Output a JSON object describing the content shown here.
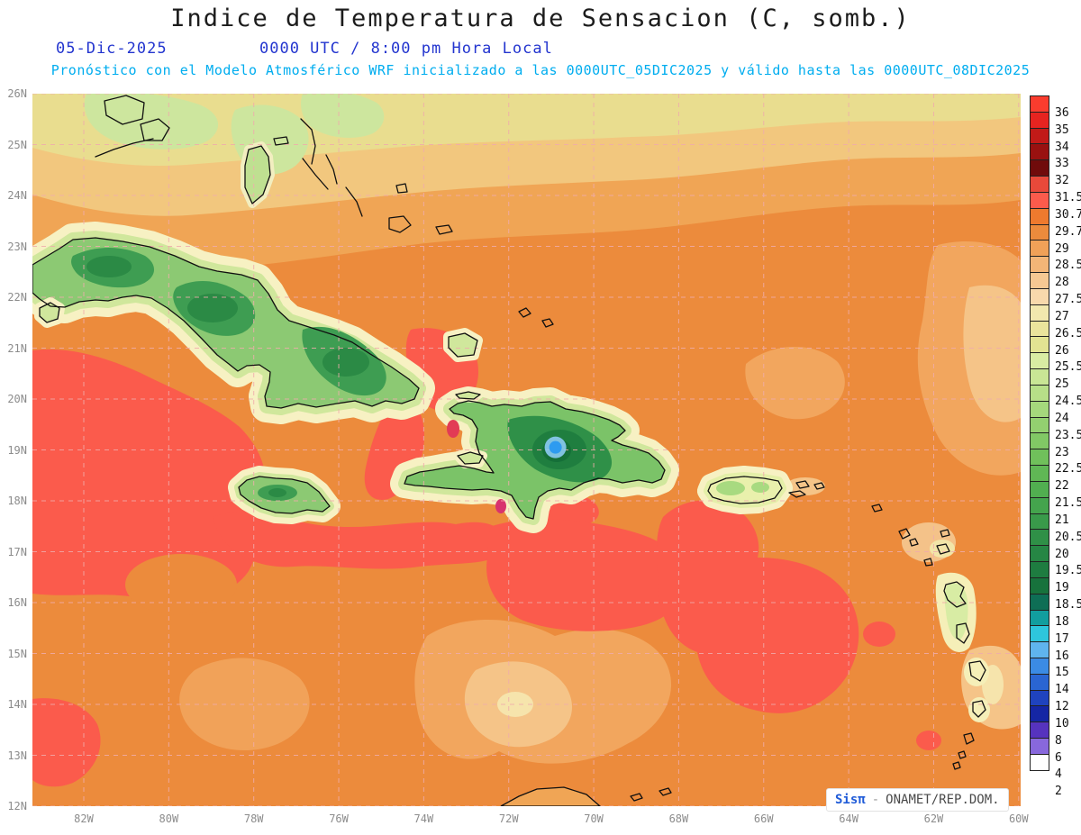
{
  "header": {
    "title": "Indice de Temperatura de Sensacion (C, somb.)",
    "date": "05-Dic-2025",
    "time": "0000 UTC / 8:00 pm Hora Local",
    "forecast_note": "Pronóstico con el Modelo Atmosférico WRF inicializado a las 0000UTC_05DIC2025 y válido hasta las  0000UTC_08DIC2025"
  },
  "map": {
    "lat_labels": [
      {
        "label": "26N",
        "deg": 26
      },
      {
        "label": "25N",
        "deg": 25
      },
      {
        "label": "24N",
        "deg": 24
      },
      {
        "label": "23N",
        "deg": 23
      },
      {
        "label": "22N",
        "deg": 22
      },
      {
        "label": "21N",
        "deg": 21
      },
      {
        "label": "20N",
        "deg": 20
      },
      {
        "label": "19N",
        "deg": 19
      },
      {
        "label": "18N",
        "deg": 18
      },
      {
        "label": "17N",
        "deg": 17
      },
      {
        "label": "16N",
        "deg": 16
      },
      {
        "label": "15N",
        "deg": 15
      },
      {
        "label": "14N",
        "deg": 14
      },
      {
        "label": "13N",
        "deg": 13
      },
      {
        "label": "12N",
        "deg": 12
      }
    ],
    "lon_labels": [
      {
        "label": "82W",
        "deg": 82
      },
      {
        "label": "80W",
        "deg": 80
      },
      {
        "label": "78W",
        "deg": 78
      },
      {
        "label": "76W",
        "deg": 76
      },
      {
        "label": "74W",
        "deg": 74
      },
      {
        "label": "72W",
        "deg": 72
      },
      {
        "label": "70W",
        "deg": 70
      },
      {
        "label": "68W",
        "deg": 68
      },
      {
        "label": "66W",
        "deg": 66
      },
      {
        "label": "64W",
        "deg": 64
      },
      {
        "label": "62W",
        "deg": 62
      },
      {
        "label": "60W",
        "deg": 60
      }
    ],
    "grid_color": "#f0acac",
    "marker": {
      "lon_w": 70.9,
      "lat_n": 19.05,
      "fill": "#2e9bf0",
      "ring": "#8ccbf4"
    }
  },
  "colorbar": {
    "tick_labels": [
      "36",
      "35",
      "34",
      "33",
      "32",
      "31.5",
      "30.7",
      "29.7",
      "29",
      "28.5",
      "28",
      "27.5",
      "27",
      "26.5",
      "26",
      "25.5",
      "25",
      "24.5",
      "24",
      "23.5",
      "23",
      "22.5",
      "22",
      "21.5",
      "21",
      "20.5",
      "20",
      "19.5",
      "19",
      "18.5",
      "18",
      "17",
      "16",
      "15",
      "14",
      "12",
      "10",
      "8",
      "6",
      "4",
      "2"
    ],
    "colors": [
      "#fa3c2e",
      "#e62420",
      "#c21a18",
      "#991110",
      "#700b0b",
      "#e8493a",
      "#fb5b4c",
      "#ee7a2e",
      "#ec8b3c",
      "#f0a158",
      "#f3b577",
      "#f6c893",
      "#f8d9ac",
      "#f2e8ae",
      "#eae49c",
      "#e2e392",
      "#d9eca3",
      "#c9e695",
      "#b7df88",
      "#a5d87c",
      "#93d070",
      "#81c865",
      "#70c05b",
      "#60b755",
      "#51ae50",
      "#44a44d",
      "#399a4a",
      "#2f9047",
      "#268644",
      "#1e7c40",
      "#17723c",
      "#0e6e55",
      "#129e9e",
      "#2ec6dc",
      "#5fb4ee",
      "#3b8be4",
      "#2a65d2",
      "#1f43be",
      "#1526a4",
      "#5633be",
      "#8868dc",
      "#ffffff"
    ]
  },
  "watermark": {
    "brand": "Sisπ",
    "separator": "-",
    "org": "ONAMET/REP.DOM."
  }
}
